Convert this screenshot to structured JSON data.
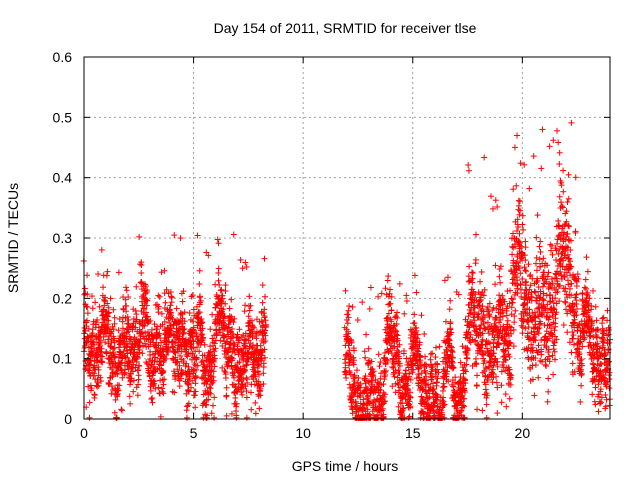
{
  "chart_data": {
    "type": "scatter",
    "title": "Day 154 of 2011, SRMTID for receiver tlse",
    "xlabel": "GPS time / hours",
    "ylabel": "SRMTID / TECUs",
    "xlim": [
      0,
      24
    ],
    "ylim": [
      0,
      0.6
    ],
    "xticks": [
      0,
      5,
      10,
      15,
      20
    ],
    "xtick_labels": [
      "0",
      "5",
      "10",
      "15",
      "20"
    ],
    "yticks": [
      0,
      0.1,
      0.2,
      0.3,
      0.4,
      0.5,
      0.6
    ],
    "ytick_labels": [
      "0",
      "0.1",
      "0.2",
      "0.3",
      "0.4",
      "0.5",
      "0.6"
    ],
    "grid": true,
    "marker": "+",
    "color": "#ff0000",
    "segments": [
      {
        "start": 0.0,
        "end": 8.3,
        "base": 0.12,
        "spread": 0.055,
        "peak": 0.31
      },
      {
        "start": 11.9,
        "end": 17.5,
        "base": 0.075,
        "spread": 0.045,
        "peak": 0.24
      },
      {
        "start": 17.5,
        "end": 19.5,
        "base": 0.15,
        "spread": 0.07,
        "peak": 0.44
      },
      {
        "start": 19.5,
        "end": 22.5,
        "base": 0.22,
        "spread": 0.08,
        "peak": 0.52
      },
      {
        "start": 22.5,
        "end": 24.0,
        "base": 0.13,
        "spread": 0.05,
        "peak": 0.27
      }
    ],
    "points_per_hour": 190
  }
}
